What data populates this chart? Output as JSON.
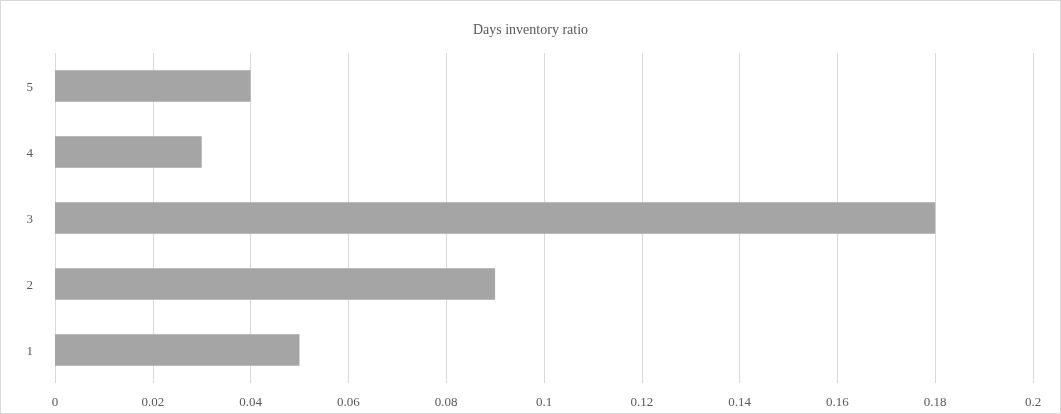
{
  "chart_data": {
    "type": "bar",
    "title": "Days inventory ratio",
    "orientation": "horizontal",
    "categories": [
      "5",
      "4",
      "3",
      "2",
      "1"
    ],
    "values": [
      0.04,
      0.03,
      0.18,
      0.09,
      0.05
    ],
    "color": "#a5a5a5",
    "xlim": [
      0,
      0.2
    ],
    "xticks": [
      0,
      0.02,
      0.04,
      0.06,
      0.08,
      0.1,
      0.12,
      0.14,
      0.16,
      0.18,
      0.2
    ],
    "grid": "x"
  }
}
